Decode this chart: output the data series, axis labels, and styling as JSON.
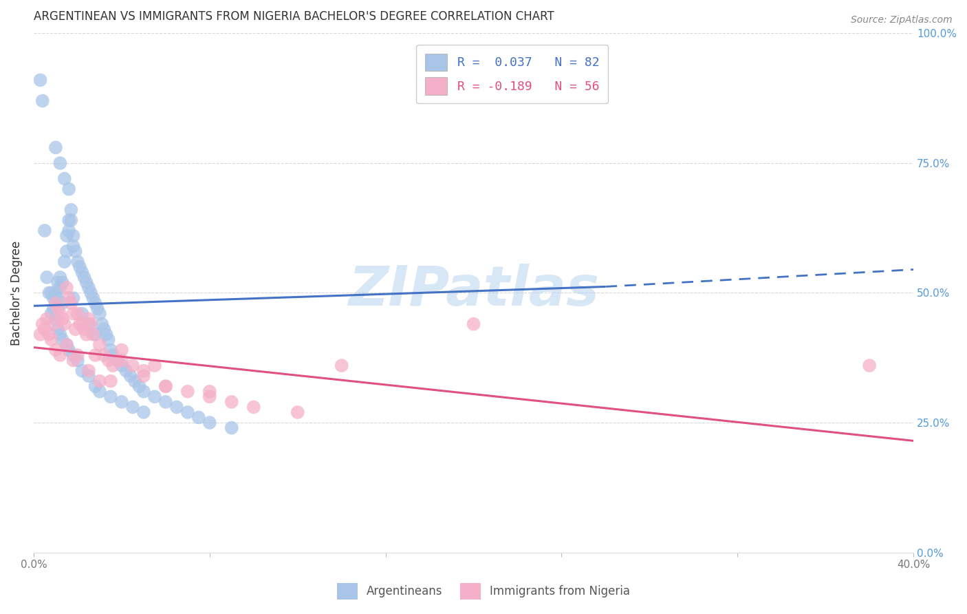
{
  "title": "ARGENTINEAN VS IMMIGRANTS FROM NIGERIA BACHELOR'S DEGREE CORRELATION CHART",
  "source": "Source: ZipAtlas.com",
  "ylabel": "Bachelor's Degree",
  "background_color": "#ffffff",
  "grid_color": "#d8d8d8",
  "xlim": [
    0.0,
    0.4
  ],
  "ylim": [
    0.0,
    1.0
  ],
  "x_tick_positions": [
    0.0,
    0.08,
    0.16,
    0.24,
    0.32,
    0.4
  ],
  "x_tick_labels": [
    "0.0%",
    "",
    "",
    "",
    "",
    "40.0%"
  ],
  "y_tick_positions": [
    0.0,
    0.25,
    0.5,
    0.75,
    1.0
  ],
  "y_tick_labels_right": [
    "0.0%",
    "25.0%",
    "50.0%",
    "75.0%",
    "100.0%"
  ],
  "watermark_text": "ZIPatlas",
  "argentineans": {
    "scatter_color": "#a8c5e8",
    "line_color": "#4472c4",
    "trend_x0": 0.0,
    "trend_x1": 0.4,
    "trend_y0": 0.475,
    "trend_y1": 0.545,
    "trend_solid_x1": 0.26,
    "trend_solid_y1": 0.512,
    "label": "Argentineans",
    "legend_R": "R =  0.037",
    "legend_N": "N = 82"
  },
  "nigeria": {
    "scatter_color": "#f4b0c8",
    "line_color": "#e05080",
    "trend_x0": 0.0,
    "trend_x1": 0.4,
    "trend_y0": 0.395,
    "trend_y1": 0.215,
    "label": "Immigrants from Nigeria",
    "legend_R": "R = -0.189",
    "legend_N": "N = 56"
  },
  "arg_x": [
    0.003,
    0.004,
    0.005,
    0.006,
    0.007,
    0.008,
    0.009,
    0.01,
    0.01,
    0.011,
    0.011,
    0.012,
    0.012,
    0.013,
    0.013,
    0.014,
    0.015,
    0.015,
    0.016,
    0.016,
    0.017,
    0.017,
    0.018,
    0.018,
    0.019,
    0.02,
    0.021,
    0.022,
    0.023,
    0.024,
    0.025,
    0.026,
    0.027,
    0.028,
    0.029,
    0.03,
    0.031,
    0.032,
    0.033,
    0.034,
    0.035,
    0.036,
    0.038,
    0.04,
    0.042,
    0.044,
    0.046,
    0.048,
    0.05,
    0.055,
    0.06,
    0.065,
    0.07,
    0.075,
    0.08,
    0.09,
    0.01,
    0.012,
    0.014,
    0.016,
    0.008,
    0.009,
    0.01,
    0.011,
    0.012,
    0.013,
    0.015,
    0.016,
    0.018,
    0.02,
    0.022,
    0.025,
    0.028,
    0.03,
    0.035,
    0.04,
    0.045,
    0.05,
    0.018,
    0.022,
    0.025,
    0.028
  ],
  "arg_y": [
    0.91,
    0.87,
    0.62,
    0.53,
    0.5,
    0.5,
    0.49,
    0.48,
    0.5,
    0.52,
    0.49,
    0.51,
    0.53,
    0.48,
    0.52,
    0.56,
    0.61,
    0.58,
    0.64,
    0.62,
    0.66,
    0.64,
    0.61,
    0.59,
    0.58,
    0.56,
    0.55,
    0.54,
    0.53,
    0.52,
    0.51,
    0.5,
    0.49,
    0.48,
    0.47,
    0.46,
    0.44,
    0.43,
    0.42,
    0.41,
    0.39,
    0.38,
    0.37,
    0.36,
    0.35,
    0.34,
    0.33,
    0.32,
    0.31,
    0.3,
    0.29,
    0.28,
    0.27,
    0.26,
    0.25,
    0.24,
    0.78,
    0.75,
    0.72,
    0.7,
    0.46,
    0.47,
    0.45,
    0.43,
    0.42,
    0.41,
    0.4,
    0.39,
    0.38,
    0.37,
    0.35,
    0.34,
    0.32,
    0.31,
    0.3,
    0.29,
    0.28,
    0.27,
    0.49,
    0.46,
    0.44,
    0.42
  ],
  "nig_x": [
    0.003,
    0.004,
    0.005,
    0.006,
    0.007,
    0.008,
    0.009,
    0.01,
    0.011,
    0.012,
    0.013,
    0.014,
    0.015,
    0.016,
    0.017,
    0.018,
    0.019,
    0.02,
    0.021,
    0.022,
    0.023,
    0.024,
    0.025,
    0.026,
    0.027,
    0.028,
    0.03,
    0.032,
    0.034,
    0.036,
    0.038,
    0.04,
    0.045,
    0.05,
    0.055,
    0.06,
    0.07,
    0.08,
    0.09,
    0.1,
    0.12,
    0.14,
    0.2,
    0.38,
    0.01,
    0.012,
    0.015,
    0.018,
    0.02,
    0.025,
    0.03,
    0.035,
    0.04,
    0.05,
    0.06,
    0.08
  ],
  "nig_y": [
    0.42,
    0.44,
    0.43,
    0.45,
    0.42,
    0.41,
    0.44,
    0.48,
    0.47,
    0.46,
    0.45,
    0.44,
    0.51,
    0.49,
    0.48,
    0.46,
    0.43,
    0.46,
    0.44,
    0.44,
    0.43,
    0.42,
    0.45,
    0.44,
    0.42,
    0.38,
    0.4,
    0.38,
    0.37,
    0.36,
    0.37,
    0.39,
    0.36,
    0.34,
    0.36,
    0.32,
    0.31,
    0.3,
    0.29,
    0.28,
    0.27,
    0.36,
    0.44,
    0.36,
    0.39,
    0.38,
    0.4,
    0.37,
    0.38,
    0.35,
    0.33,
    0.33,
    0.37,
    0.35,
    0.32,
    0.31
  ]
}
